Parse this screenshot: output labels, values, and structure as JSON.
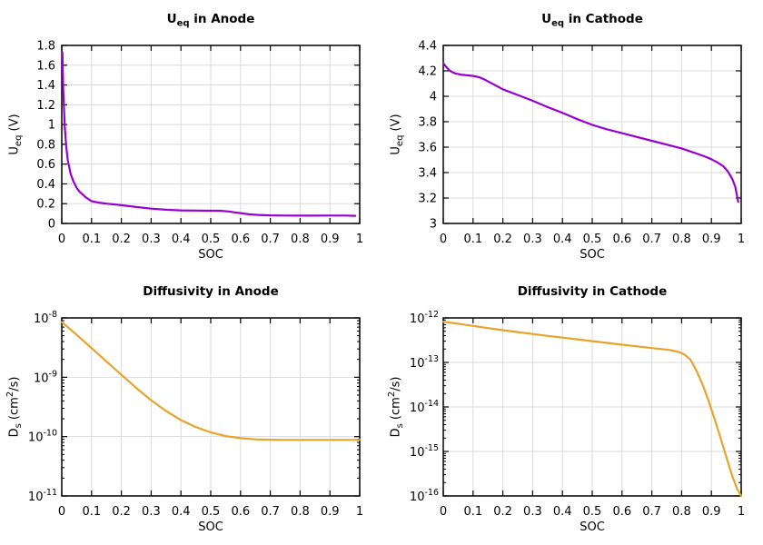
{
  "figure": {
    "background": "#ffffff",
    "grid_color": "#dbdbdb",
    "axis_color": "#000000",
    "text_color": "#000000"
  },
  "chart_data": [
    {
      "id": "ueq-anode",
      "type": "line",
      "title": {
        "p1": "U",
        "sub": "eq",
        "p2": " in Anode"
      },
      "xlabel": "SOC",
      "ylabel": {
        "p1": "U",
        "sub": "eq",
        "p2": " (V)",
        "sup": "",
        "p3": ""
      },
      "line_color": "#9800d1",
      "yscale": "linear",
      "grid": true,
      "legend": "none",
      "xlim": [
        0,
        1
      ],
      "ylim": [
        0,
        1.8
      ],
      "xticks": [
        0,
        0.1,
        0.2,
        0.3,
        0.4,
        0.5,
        0.6,
        0.7,
        0.8,
        0.9,
        1
      ],
      "xtick_labels": [
        "0",
        "0.1",
        "0.2",
        "0.3",
        "0.4",
        "0.5",
        "0.6",
        "0.7",
        "0.8",
        "0.9",
        "1"
      ],
      "yticks": [
        0,
        0.2,
        0.4,
        0.6,
        0.8,
        1,
        1.2,
        1.4,
        1.6,
        1.8
      ],
      "ytick_labels": [
        "0",
        "0.2",
        "0.4",
        "0.6",
        "0.8",
        "1",
        "1.2",
        "1.4",
        "1.6",
        "1.8"
      ],
      "x": [
        0.002,
        0.005,
        0.01,
        0.015,
        0.02,
        0.03,
        0.04,
        0.05,
        0.06,
        0.08,
        0.1,
        0.125,
        0.15,
        0.175,
        0.2,
        0.25,
        0.3,
        0.35,
        0.4,
        0.45,
        0.5,
        0.53,
        0.56,
        0.58,
        0.6,
        0.63,
        0.66,
        0.7,
        0.75,
        0.8,
        0.85,
        0.9,
        0.95,
        0.985
      ],
      "y": [
        1.73,
        1.35,
        0.98,
        0.78,
        0.64,
        0.5,
        0.42,
        0.36,
        0.32,
        0.265,
        0.225,
        0.21,
        0.2,
        0.193,
        0.185,
        0.166,
        0.15,
        0.139,
        0.132,
        0.13,
        0.129,
        0.129,
        0.121,
        0.112,
        0.105,
        0.092,
        0.086,
        0.082,
        0.08,
        0.079,
        0.079,
        0.08,
        0.08,
        0.077
      ]
    },
    {
      "id": "ueq-cathode",
      "type": "line",
      "title": {
        "p1": "U",
        "sub": "eq",
        "p2": " in Cathode"
      },
      "xlabel": "SOC",
      "ylabel": {
        "p1": "U",
        "sub": "eq",
        "p2": " (V)",
        "sup": "",
        "p3": ""
      },
      "line_color": "#9800d1",
      "yscale": "linear",
      "grid": true,
      "legend": "none",
      "xlim": [
        0,
        1
      ],
      "ylim": [
        3,
        4.4
      ],
      "xticks": [
        0,
        0.1,
        0.2,
        0.3,
        0.4,
        0.5,
        0.6,
        0.7,
        0.8,
        0.9,
        1
      ],
      "xtick_labels": [
        "0",
        "0.1",
        "0.2",
        "0.3",
        "0.4",
        "0.5",
        "0.6",
        "0.7",
        "0.8",
        "0.9",
        "1"
      ],
      "yticks": [
        3,
        3.2,
        3.4,
        3.6,
        3.8,
        4,
        4.2,
        4.4
      ],
      "ytick_labels": [
        "3",
        "3.2",
        "3.4",
        "3.6",
        "3.8",
        "4",
        "4.2",
        "4.4"
      ],
      "x": [
        0,
        0.01,
        0.02,
        0.03,
        0.04,
        0.06,
        0.08,
        0.1,
        0.12,
        0.14,
        0.16,
        0.18,
        0.2,
        0.25,
        0.3,
        0.35,
        0.4,
        0.45,
        0.5,
        0.55,
        0.6,
        0.65,
        0.7,
        0.75,
        0.8,
        0.85,
        0.88,
        0.9,
        0.92,
        0.94,
        0.955,
        0.97,
        0.98,
        0.99
      ],
      "y": [
        4.26,
        4.23,
        4.205,
        4.19,
        4.18,
        4.17,
        4.165,
        4.16,
        4.15,
        4.13,
        4.105,
        4.08,
        4.055,
        4.01,
        3.965,
        3.915,
        3.87,
        3.82,
        3.775,
        3.74,
        3.71,
        3.68,
        3.65,
        3.62,
        3.59,
        3.55,
        3.525,
        3.505,
        3.48,
        3.45,
        3.41,
        3.35,
        3.29,
        3.17
      ]
    },
    {
      "id": "ds-anode",
      "type": "line",
      "title": {
        "p1": "Diffusivity in Anode",
        "sub": "",
        "p2": ""
      },
      "xlabel": "SOC",
      "ylabel": {
        "p1": "D",
        "sub": "s",
        "p2": " (cm",
        "sup": "2",
        "p3": "/s)"
      },
      "line_color": "#e8a32a",
      "yscale": "log",
      "grid": true,
      "legend": "none",
      "xlim": [
        0,
        1
      ],
      "ylim": [
        1e-11,
        1e-08
      ],
      "xticks": [
        0,
        0.1,
        0.2,
        0.3,
        0.4,
        0.5,
        0.6,
        0.7,
        0.8,
        0.9,
        1
      ],
      "xtick_labels": [
        "0",
        "0.1",
        "0.2",
        "0.3",
        "0.4",
        "0.5",
        "0.6",
        "0.7",
        "0.8",
        "0.9",
        "1"
      ],
      "yticks": [
        1e-08,
        1e-09,
        1e-10,
        1e-11
      ],
      "ytick_exponents": [
        "-8",
        "-9",
        "-10",
        "-11"
      ],
      "x": [
        0,
        0.05,
        0.1,
        0.15,
        0.2,
        0.25,
        0.3,
        0.35,
        0.4,
        0.45,
        0.5,
        0.55,
        0.6,
        0.65,
        0.7,
        0.75,
        0.8,
        0.85,
        0.9,
        0.95,
        1.0
      ],
      "y": [
        8.5e-09,
        5.2e-09,
        3.1e-09,
        1.85e-09,
        1.1e-09,
        6.6e-10,
        4.1e-10,
        2.7e-10,
        1.9e-10,
        1.45e-10,
        1.18e-10,
        1.02e-10,
        9.4e-11,
        9e-11,
        8.85e-11,
        8.8e-11,
        8.8e-11,
        8.8e-11,
        8.8e-11,
        8.8e-11,
        8.8e-11
      ]
    },
    {
      "id": "ds-cathode",
      "type": "line",
      "title": {
        "p1": "Diffusivity in Cathode",
        "sub": "",
        "p2": ""
      },
      "xlabel": "SOC",
      "ylabel": {
        "p1": "D",
        "sub": "s",
        "p2": " (cm",
        "sup": "2",
        "p3": "/s)"
      },
      "line_color": "#e8a32a",
      "yscale": "log",
      "grid": true,
      "legend": "none",
      "xlim": [
        0,
        1
      ],
      "ylim": [
        1e-16,
        1e-12
      ],
      "xticks": [
        0,
        0.1,
        0.2,
        0.3,
        0.4,
        0.5,
        0.6,
        0.7,
        0.8,
        0.9,
        1
      ],
      "xtick_labels": [
        "0",
        "0.1",
        "0.2",
        "0.3",
        "0.4",
        "0.5",
        "0.6",
        "0.7",
        "0.8",
        "0.9",
        "1"
      ],
      "yticks": [
        1e-12,
        1e-13,
        1e-14,
        1e-15,
        1e-16
      ],
      "ytick_exponents": [
        "-12",
        "-13",
        "-14",
        "-15",
        "-16"
      ],
      "x": [
        0,
        0.05,
        0.1,
        0.15,
        0.2,
        0.25,
        0.3,
        0.35,
        0.4,
        0.45,
        0.5,
        0.55,
        0.6,
        0.65,
        0.7,
        0.73,
        0.76,
        0.79,
        0.81,
        0.83,
        0.85,
        0.87,
        0.89,
        0.91,
        0.93,
        0.95,
        0.97,
        0.985,
        1.0
      ],
      "y": [
        8.2e-13,
        7.4e-13,
        6.6e-13,
        5.9e-13,
        5.3e-13,
        4.8e-13,
        4.35e-13,
        3.95e-13,
        3.6e-13,
        3.3e-13,
        3e-13,
        2.75e-13,
        2.5e-13,
        2.3e-13,
        2.1e-13,
        2e-13,
        1.9e-13,
        1.72e-13,
        1.5e-13,
        1.15e-13,
        6.5e-14,
        3.2e-14,
        1.4e-14,
        5.5e-15,
        2.1e-15,
        7.5e-16,
        2.8e-16,
        1.5e-16,
        1e-16
      ]
    }
  ]
}
